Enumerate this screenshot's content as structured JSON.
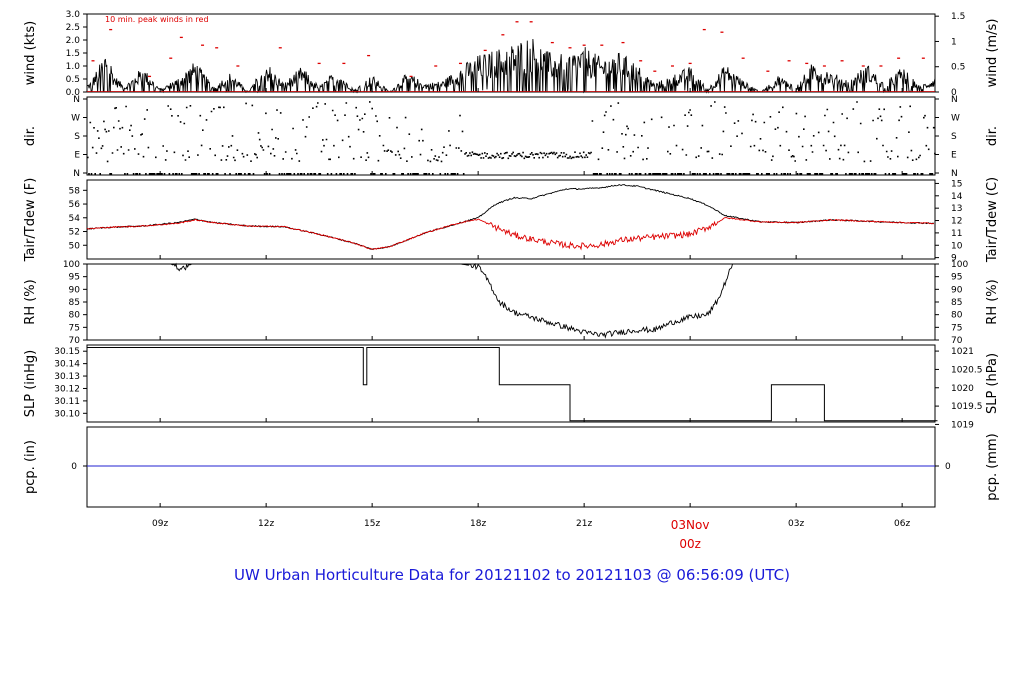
{
  "title": "UW Urban Horticulture Data for 20121102  to  20121103 @ 06:56:09  (UTC)",
  "colors": {
    "axis": "#000000",
    "red": "#dd0000",
    "blue": "#2020d0",
    "title": "#1a1ad8"
  },
  "chart_data": [
    {
      "type": "line",
      "name": "wind",
      "ylabel_left": "wind (kts)",
      "ylabel_right": "wind (m/s)",
      "annotation": "10 min. peak winds in red",
      "ylim": [
        0,
        3.0
      ],
      "yticks_left": [
        "0.0",
        "0.5",
        "1.0",
        "1.5",
        "2.0",
        "2.5",
        "3.0"
      ],
      "yticks_right": [
        "0",
        "0.5",
        "1",
        "1.5"
      ],
      "series": [
        {
          "values_hours": [
            7.0,
            7.3,
            7.5,
            7.7,
            8.0,
            8.5,
            9.0,
            9.5,
            10.0,
            10.5,
            11.0,
            11.5,
            12.0,
            12.5,
            13.0,
            13.5,
            14.0,
            14.5,
            15.0,
            15.5,
            16.0,
            16.5,
            17.0,
            17.5,
            18.0,
            18.5,
            19.0,
            19.5,
            20.0,
            20.5,
            21.0,
            21.5,
            22.0,
            22.5,
            23.0,
            23.5,
            24.0,
            24.5,
            25.0,
            25.5,
            26.0,
            26.5,
            27.0,
            27.5,
            28.0,
            28.5,
            29.0,
            29.5,
            30.0,
            30.5,
            31.0
          ],
          "values": [
            0.3,
            1.0,
            1.6,
            0.6,
            0.2,
            0.9,
            0.1,
            0.5,
            1.1,
            0.2,
            0.7,
            0.0,
            1.1,
            0.3,
            0.9,
            0.2,
            0.8,
            0.1,
            0.6,
            0.0,
            0.7,
            0.3,
            0.4,
            0.9,
            1.3,
            1.5,
            1.7,
            2.0,
            1.4,
            1.3,
            1.6,
            1.2,
            1.4,
            1.0,
            0.3,
            0.6,
            0.9,
            0.1,
            1.0,
            0.4,
            0.0,
            0.6,
            0.2,
            1.1,
            0.7,
            0.4,
            1.0,
            0.3,
            0.9,
            0.2,
            0.6
          ]
        }
      ],
      "peaks_hours": [
        7.1,
        7.6,
        8.7,
        9.3,
        9.6,
        10.2,
        10.6,
        11.2,
        12.4,
        13.5,
        14.2,
        14.9,
        16.1,
        16.8,
        17.5,
        18.2,
        18.7,
        19.1,
        19.5,
        20.1,
        20.6,
        21.0,
        21.5,
        22.1,
        22.6,
        23.0,
        23.5,
        24.0,
        24.4,
        24.9,
        25.5,
        26.2,
        26.8,
        27.3,
        27.8,
        28.3,
        28.9,
        29.4,
        29.9,
        30.6
      ],
      "peaks": [
        1.2,
        2.4,
        0.6,
        1.3,
        2.1,
        1.8,
        1.7,
        1.0,
        1.7,
        1.1,
        1.1,
        1.4,
        0.6,
        1.0,
        1.1,
        1.6,
        2.2,
        2.7,
        2.7,
        1.9,
        1.7,
        1.8,
        1.8,
        1.9,
        1.2,
        0.8,
        1.0,
        1.1,
        2.4,
        2.3,
        1.3,
        0.8,
        1.2,
        1.1,
        1.0,
        1.2,
        1.0,
        1.0,
        1.3,
        1.3
      ]
    },
    {
      "type": "scatter",
      "name": "dir",
      "ylabel_left": "dir.",
      "ylabel_right": "dir.",
      "yticks_left": [
        "N",
        "E",
        "S",
        "W",
        "N"
      ],
      "yticks_right": [
        "N",
        "E",
        "S",
        "W",
        "N"
      ]
    },
    {
      "type": "line",
      "name": "temperature",
      "ylabel_left": "Tair/Tdew (F)",
      "ylabel_right": "Tair/Tdew (C)",
      "ylim": [
        48,
        59.5
      ],
      "yticks_left": [
        "50",
        "52",
        "54",
        "56",
        "58"
      ],
      "yticks_right": [
        "9",
        "10",
        "11",
        "12",
        "13",
        "14",
        "15"
      ],
      "x_hours": [
        6.5,
        7.5,
        8.5,
        9.5,
        10.0,
        10.5,
        11.5,
        12.5,
        13.5,
        14.5,
        15.0,
        15.5,
        16.5,
        17.5,
        18.0,
        18.5,
        19.0,
        19.5,
        20.0,
        20.5,
        21.0,
        21.5,
        22.0,
        22.5,
        23.0,
        23.5,
        24.0,
        24.5,
        25.0,
        26.0,
        27.0,
        28.0,
        29.0,
        30.0,
        31.0
      ],
      "series": [
        {
          "name": "Tair",
          "values": [
            52.2,
            52.6,
            52.8,
            53.3,
            53.8,
            53.3,
            52.8,
            52.7,
            51.6,
            50.3,
            49.4,
            49.8,
            51.8,
            53.3,
            54.0,
            56.0,
            56.9,
            56.8,
            57.5,
            58.2,
            58.2,
            58.4,
            58.8,
            58.6,
            58.0,
            57.4,
            56.8,
            55.8,
            54.3,
            53.4,
            53.3,
            53.7,
            53.5,
            53.3,
            53.2
          ]
        },
        {
          "name": "Tdew",
          "values": [
            52.2,
            52.6,
            52.8,
            53.2,
            53.7,
            53.3,
            52.8,
            52.7,
            51.6,
            50.3,
            49.4,
            49.8,
            51.8,
            53.3,
            53.8,
            52.6,
            51.5,
            50.9,
            50.4,
            50.0,
            49.9,
            50.1,
            50.7,
            51.0,
            51.2,
            51.4,
            51.6,
            52.6,
            54.0,
            53.4,
            53.3,
            53.7,
            53.5,
            53.3,
            53.2
          ]
        }
      ]
    },
    {
      "type": "line",
      "name": "rh",
      "ylabel_left": "RH (%)",
      "ylabel_right": "RH (%)",
      "ylim": [
        70,
        100
      ],
      "yticks_left": [
        "70",
        "75",
        "80",
        "85",
        "90",
        "95",
        "100"
      ],
      "yticks_right": [
        "70",
        "75",
        "80",
        "85",
        "90",
        "95",
        "100"
      ],
      "x_hours": [
        6.5,
        9.3,
        9.6,
        9.9,
        10.2,
        17.5,
        18.0,
        18.3,
        18.6,
        19.0,
        19.5,
        20.0,
        20.5,
        21.0,
        21.5,
        22.0,
        22.5,
        23.0,
        23.5,
        24.0,
        24.5,
        24.8,
        25.2,
        31.0
      ],
      "series": [
        {
          "name": "RH",
          "values": [
            100,
            100,
            98,
            100,
            100,
            100,
            99,
            93,
            85,
            81,
            79,
            77,
            75,
            73,
            72,
            73,
            74,
            74,
            77,
            79,
            80,
            86,
            100,
            100
          ]
        }
      ]
    },
    {
      "type": "line",
      "name": "slp",
      "ylabel_left": "SLP (inHg)",
      "ylabel_right": "SLP (hPa)",
      "ylim": [
        30.093,
        30.155
      ],
      "yticks_left": [
        "30.10",
        "30.11",
        "30.12",
        "30.13",
        "30.14",
        "30.15"
      ],
      "yticks_right": [
        "1019",
        "1019.5",
        "1020",
        "1020.5",
        "1021"
      ],
      "x_hours": [
        6.5,
        14.75,
        14.75,
        14.85,
        14.85,
        18.6,
        18.6,
        20.6,
        20.6,
        26.3,
        26.3,
        27.8,
        27.8,
        31.0
      ],
      "series": [
        {
          "name": "SLP",
          "values": [
            30.153,
            30.153,
            30.123,
            30.123,
            30.153,
            30.153,
            30.123,
            30.123,
            30.094,
            30.094,
            30.123,
            30.123,
            30.094,
            30.094
          ]
        }
      ]
    },
    {
      "type": "line",
      "name": "precip",
      "ylabel_left": "pcp. (in)",
      "ylabel_right": "pcp. (mm)",
      "yticks_left": [
        "0"
      ],
      "yticks_right": [
        "0"
      ],
      "series": [
        {
          "name": "pcp",
          "values": [
            0,
            0
          ]
        }
      ]
    }
  ],
  "x_axis": {
    "tick_labels": [
      "09z",
      "12z",
      "15z",
      "18z",
      "21z",
      "03Nov",
      "03z",
      "06z"
    ],
    "tick_hours": [
      9,
      12,
      15,
      18,
      21,
      24,
      27,
      30
    ],
    "day_label": "00z",
    "range_hours": [
      6.93,
      30.93
    ]
  }
}
